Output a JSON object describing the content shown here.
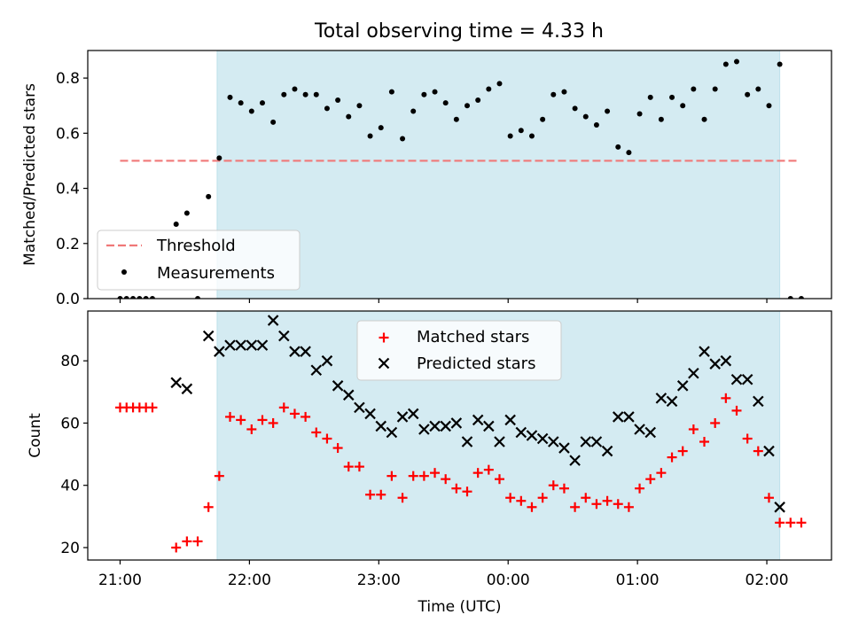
{
  "figure": {
    "title": "Total observing time = 4.33 h"
  },
  "chart_data": [
    {
      "type": "scatter",
      "title": "Total observing time = 4.33 h",
      "xlabel": "",
      "ylabel": "Matched/Predicted stars",
      "xlim": [
        "20:45",
        "02:30"
      ],
      "ylim": [
        0.0,
        0.9
      ],
      "yticks": [
        "0.0",
        "0.2",
        "0.4",
        "0.6",
        "0.8"
      ],
      "grid": false,
      "legend": "lower-left",
      "shaded_span": {
        "start": "21:45",
        "end": "02:06",
        "color": "#add8e6"
      },
      "threshold": {
        "name": "Threshold",
        "value": 0.5,
        "x_start": "21:00",
        "x_end": "02:14",
        "color": "#f07878"
      },
      "series": [
        {
          "name": "Measurements",
          "color": "#000000",
          "marker": "dot",
          "points": [
            [
              "21:00",
              0.0
            ],
            [
              "21:03",
              0.0
            ],
            [
              "21:06",
              0.0
            ],
            [
              "21:09",
              0.0
            ],
            [
              "21:12",
              0.0
            ],
            [
              "21:15",
              0.0
            ],
            [
              "21:26",
              0.27
            ],
            [
              "21:31",
              0.31
            ],
            [
              "21:36",
              0.0
            ],
            [
              "21:41",
              0.37
            ],
            [
              "21:46",
              0.51
            ],
            [
              "21:51",
              0.73
            ],
            [
              "21:56",
              0.71
            ],
            [
              "22:01",
              0.68
            ],
            [
              "22:06",
              0.71
            ],
            [
              "22:11",
              0.64
            ],
            [
              "22:16",
              0.74
            ],
            [
              "22:21",
              0.76
            ],
            [
              "22:26",
              0.74
            ],
            [
              "22:31",
              0.74
            ],
            [
              "22:36",
              0.69
            ],
            [
              "22:41",
              0.72
            ],
            [
              "22:46",
              0.66
            ],
            [
              "22:51",
              0.7
            ],
            [
              "22:56",
              0.59
            ],
            [
              "23:01",
              0.62
            ],
            [
              "23:06",
              0.75
            ],
            [
              "23:11",
              0.58
            ],
            [
              "23:16",
              0.68
            ],
            [
              "23:21",
              0.74
            ],
            [
              "23:26",
              0.75
            ],
            [
              "23:31",
              0.71
            ],
            [
              "23:36",
              0.65
            ],
            [
              "23:41",
              0.7
            ],
            [
              "23:46",
              0.72
            ],
            [
              "23:51",
              0.76
            ],
            [
              "23:56",
              0.78
            ],
            [
              "00:01",
              0.59
            ],
            [
              "00:06",
              0.61
            ],
            [
              "00:11",
              0.59
            ],
            [
              "00:16",
              0.65
            ],
            [
              "00:21",
              0.74
            ],
            [
              "00:26",
              0.75
            ],
            [
              "00:31",
              0.69
            ],
            [
              "00:36",
              0.66
            ],
            [
              "00:41",
              0.63
            ],
            [
              "00:46",
              0.68
            ],
            [
              "00:51",
              0.55
            ],
            [
              "00:56",
              0.53
            ],
            [
              "01:01",
              0.67
            ],
            [
              "01:06",
              0.73
            ],
            [
              "01:11",
              0.65
            ],
            [
              "01:16",
              0.73
            ],
            [
              "01:21",
              0.7
            ],
            [
              "01:26",
              0.76
            ],
            [
              "01:31",
              0.65
            ],
            [
              "01:36",
              0.76
            ],
            [
              "01:41",
              0.85
            ],
            [
              "01:46",
              0.86
            ],
            [
              "01:51",
              0.74
            ],
            [
              "01:56",
              0.76
            ],
            [
              "02:01",
              0.7
            ],
            [
              "02:06",
              0.85
            ],
            [
              "02:11",
              0.0
            ],
            [
              "02:16",
              0.0
            ]
          ]
        }
      ]
    },
    {
      "type": "scatter",
      "title": "",
      "xlabel": "Time (UTC)",
      "ylabel": "Count",
      "xlim": [
        "20:45",
        "02:30"
      ],
      "ylim": [
        16,
        96
      ],
      "yticks": [
        "20",
        "40",
        "60",
        "80"
      ],
      "xticks": [
        "21:00",
        "22:00",
        "23:00",
        "00:00",
        "01:00",
        "02:00"
      ],
      "grid": false,
      "legend": "top-center",
      "shaded_span": {
        "start": "21:45",
        "end": "02:06",
        "color": "#add8e6"
      },
      "series": [
        {
          "name": "Matched stars",
          "color": "#ff0000",
          "marker": "plus",
          "points": [
            [
              "21:00",
              65
            ],
            [
              "21:03",
              65
            ],
            [
              "21:06",
              65
            ],
            [
              "21:09",
              65
            ],
            [
              "21:12",
              65
            ],
            [
              "21:15",
              65
            ],
            [
              "21:26",
              20
            ],
            [
              "21:31",
              22
            ],
            [
              "21:36",
              22
            ],
            [
              "21:41",
              33
            ],
            [
              "21:46",
              43
            ],
            [
              "21:51",
              62
            ],
            [
              "21:56",
              61
            ],
            [
              "22:01",
              58
            ],
            [
              "22:06",
              61
            ],
            [
              "22:11",
              60
            ],
            [
              "22:16",
              65
            ],
            [
              "22:21",
              63
            ],
            [
              "22:26",
              62
            ],
            [
              "22:31",
              57
            ],
            [
              "22:36",
              55
            ],
            [
              "22:41",
              52
            ],
            [
              "22:46",
              46
            ],
            [
              "22:51",
              46
            ],
            [
              "22:56",
              37
            ],
            [
              "23:01",
              37
            ],
            [
              "23:06",
              43
            ],
            [
              "23:11",
              36
            ],
            [
              "23:16",
              43
            ],
            [
              "23:21",
              43
            ],
            [
              "23:26",
              44
            ],
            [
              "23:31",
              42
            ],
            [
              "23:36",
              39
            ],
            [
              "23:41",
              38
            ],
            [
              "23:46",
              44
            ],
            [
              "23:51",
              45
            ],
            [
              "23:56",
              42
            ],
            [
              "00:01",
              36
            ],
            [
              "00:06",
              35
            ],
            [
              "00:11",
              33
            ],
            [
              "00:16",
              36
            ],
            [
              "00:21",
              40
            ],
            [
              "00:26",
              39
            ],
            [
              "00:31",
              33
            ],
            [
              "00:36",
              36
            ],
            [
              "00:41",
              34
            ],
            [
              "00:46",
              35
            ],
            [
              "00:51",
              34
            ],
            [
              "00:56",
              33
            ],
            [
              "01:01",
              39
            ],
            [
              "01:06",
              42
            ],
            [
              "01:11",
              44
            ],
            [
              "01:16",
              49
            ],
            [
              "01:21",
              51
            ],
            [
              "01:26",
              58
            ],
            [
              "01:31",
              54
            ],
            [
              "01:36",
              60
            ],
            [
              "01:41",
              68
            ],
            [
              "01:46",
              64
            ],
            [
              "01:51",
              55
            ],
            [
              "01:56",
              51
            ],
            [
              "02:01",
              36
            ],
            [
              "02:06",
              28
            ],
            [
              "02:11",
              28
            ],
            [
              "02:16",
              28
            ]
          ]
        },
        {
          "name": "Predicted stars",
          "color": "#000000",
          "marker": "x",
          "points": [
            [
              "21:26",
              73
            ],
            [
              "21:31",
              71
            ],
            [
              "21:41",
              88
            ],
            [
              "21:46",
              83
            ],
            [
              "21:51",
              85
            ],
            [
              "21:56",
              85
            ],
            [
              "22:01",
              85
            ],
            [
              "22:06",
              85
            ],
            [
              "22:11",
              93
            ],
            [
              "22:16",
              88
            ],
            [
              "22:21",
              83
            ],
            [
              "22:26",
              83
            ],
            [
              "22:31",
              77
            ],
            [
              "22:36",
              80
            ],
            [
              "22:41",
              72
            ],
            [
              "22:46",
              69
            ],
            [
              "22:51",
              65
            ],
            [
              "22:56",
              63
            ],
            [
              "23:01",
              59
            ],
            [
              "23:06",
              57
            ],
            [
              "23:11",
              62
            ],
            [
              "23:16",
              63
            ],
            [
              "23:21",
              58
            ],
            [
              "23:26",
              59
            ],
            [
              "23:31",
              59
            ],
            [
              "23:36",
              60
            ],
            [
              "23:41",
              54
            ],
            [
              "23:46",
              61
            ],
            [
              "23:51",
              59
            ],
            [
              "23:56",
              54
            ],
            [
              "00:01",
              61
            ],
            [
              "00:06",
              57
            ],
            [
              "00:11",
              56
            ],
            [
              "00:16",
              55
            ],
            [
              "00:21",
              54
            ],
            [
              "00:26",
              52
            ],
            [
              "00:31",
              48
            ],
            [
              "00:36",
              54
            ],
            [
              "00:41",
              54
            ],
            [
              "00:46",
              51
            ],
            [
              "00:51",
              62
            ],
            [
              "00:56",
              62
            ],
            [
              "01:01",
              58
            ],
            [
              "01:06",
              57
            ],
            [
              "01:11",
              68
            ],
            [
              "01:16",
              67
            ],
            [
              "01:21",
              72
            ],
            [
              "01:26",
              76
            ],
            [
              "01:31",
              83
            ],
            [
              "01:36",
              79
            ],
            [
              "01:41",
              80
            ],
            [
              "01:46",
              74
            ],
            [
              "01:51",
              74
            ],
            [
              "01:56",
              67
            ],
            [
              "02:01",
              51
            ],
            [
              "02:06",
              33
            ]
          ]
        }
      ]
    }
  ]
}
